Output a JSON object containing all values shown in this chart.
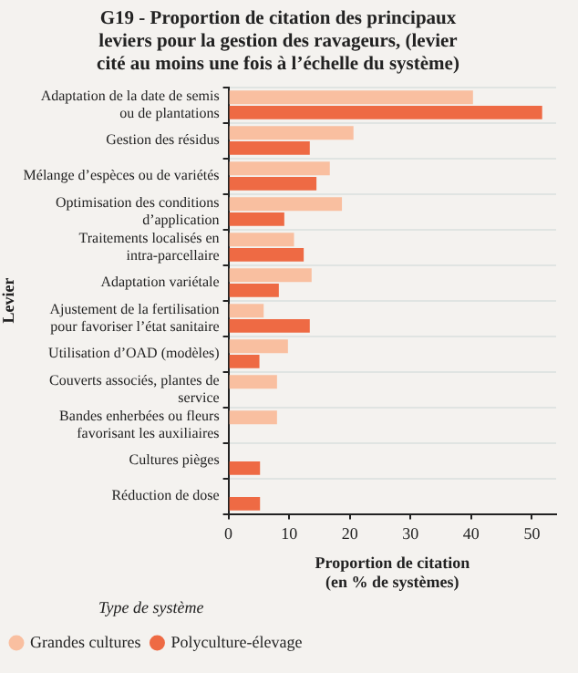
{
  "chart_data": {
    "type": "bar",
    "orientation": "horizontal",
    "title": "G19 - Proportion de citation des principaux leviers pour la gestion des ravageurs, (levier cité au moins une fois à l’échelle du système)",
    "xlabel": "Proportion de citation\n(en % de systèmes)",
    "ylabel": "Levier",
    "legend_title": "Type de système",
    "legend": "bottom left",
    "grid": "y",
    "categories": [
      "Adaptation de la date de semis ou de plantations",
      "Gestion des résidus",
      "Mélange d’espèces ou de variétés",
      "Optimisation des conditions d’application",
      "Traitements localisés en intra-parcellaire",
      "Adaptation variétale",
      "Ajustement de la fertilisation pour favoriser l’état sanitaire",
      "Utilisation d’OAD (modèles)",
      "Couverts associés, plantes de service",
      "Bandes enherbées ou fleurs favorisant les auxiliaires",
      "Cultures pièges",
      "Réduction de dose"
    ],
    "series": [
      {
        "name": "Grandes cultures",
        "color": "#f9bfa0",
        "values": [
          40.3,
          20.6,
          16.7,
          18.7,
          10.8,
          13.7,
          5.8,
          9.8,
          8.0,
          8.0,
          null,
          null
        ]
      },
      {
        "name": "Polyculture-élevage",
        "color": "#ee6a44",
        "values": [
          51.7,
          13.4,
          14.5,
          9.2,
          12.4,
          8.3,
          13.4,
          5.1,
          null,
          null,
          5.2,
          5.2
        ]
      }
    ],
    "xlim": [
      0,
      54
    ],
    "xticks": [
      0,
      10,
      20,
      30,
      40,
      50
    ]
  }
}
